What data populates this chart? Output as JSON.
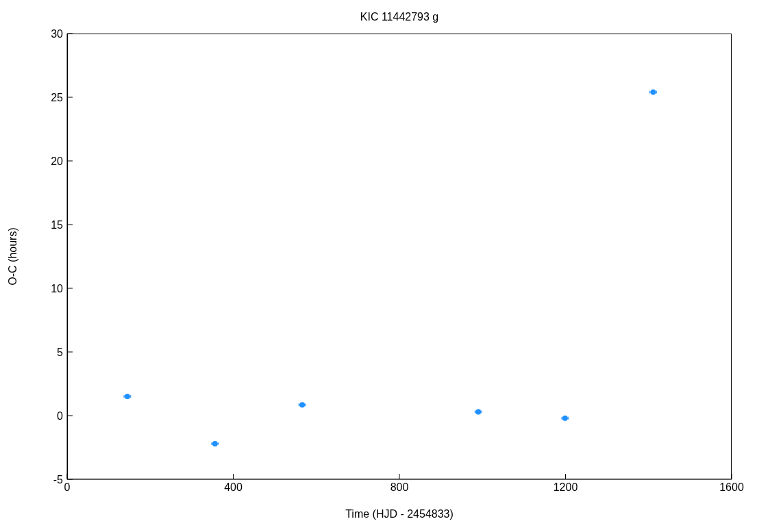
{
  "chart_data": {
    "type": "scatter",
    "title": "KIC 11442793 g",
    "xlabel": "Time (HJD - 2454833)",
    "ylabel": "O-C (hours)",
    "x": [
      145,
      356,
      566,
      990,
      1199,
      1411
    ],
    "series": [
      {
        "color": "#1e90ff",
        "values": [
          1.5,
          -2.2,
          0.85,
          0.3,
          -0.2,
          25.4
        ],
        "xerrors": [
          8,
          8,
          8,
          8,
          8,
          8
        ]
      }
    ],
    "xlim": [
      0,
      1600
    ],
    "xticks": [
      0,
      400,
      800,
      1200,
      1600
    ],
    "ylim": [
      -5,
      30
    ],
    "yticks": [
      -5,
      0,
      5,
      10,
      15,
      20,
      25,
      30
    ],
    "marker": "circle"
  }
}
